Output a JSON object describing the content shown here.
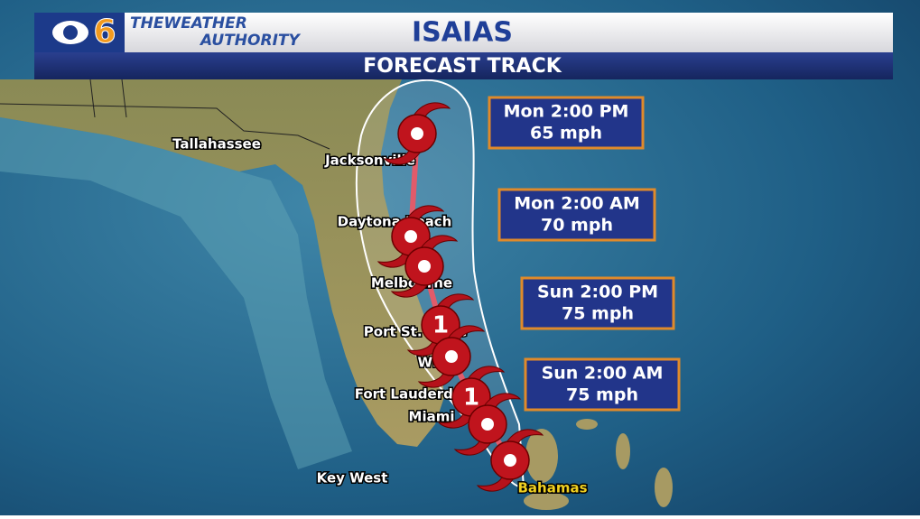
{
  "header": {
    "logo_number": "6",
    "logo_text_1": "THEWEATHER",
    "logo_text_2": "AUTHORITY",
    "title": "ISAIAS",
    "subtitle": "FORECAST TRACK"
  },
  "cities": [
    "Tallahassee",
    "Jacksonville",
    "Daytona Beach",
    "Melbourne",
    "Port St. Lucie",
    "WPB",
    "Fort Lauderdale",
    "Miami",
    "Key West",
    "Bahamas"
  ],
  "forecast": [
    {
      "time": "Mon 2:00 PM",
      "wind": "65 mph"
    },
    {
      "time": "Mon 2:00 AM",
      "wind": "70 mph"
    },
    {
      "time": "Sun 2:00 PM",
      "wind": "75 mph"
    },
    {
      "time": "Sun 2:00 AM",
      "wind": "75 mph"
    }
  ],
  "storm_labels": [
    "1",
    "1"
  ]
}
